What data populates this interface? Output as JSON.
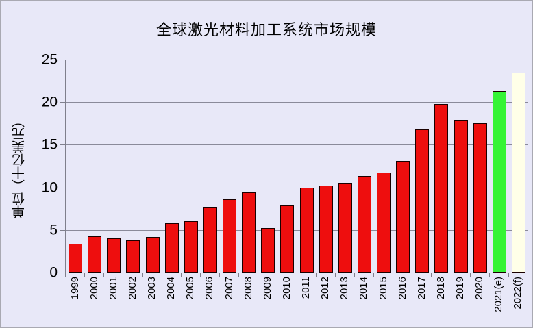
{
  "chart_data": {
    "type": "bar",
    "title": "全球激光材料加工系统市场规模",
    "ylabel": "单位（十亿美元）",
    "xlabel": "",
    "ylim": [
      0,
      25
    ],
    "yticks": [
      0,
      5,
      10,
      15,
      20,
      25
    ],
    "grid": true,
    "legend_position": "none",
    "categories": [
      "1999",
      "2000",
      "2001",
      "2002",
      "2003",
      "2004",
      "2005",
      "2006",
      "2007",
      "2008",
      "2009",
      "2010",
      "2011",
      "2012",
      "2013",
      "2014",
      "2015",
      "2016",
      "2017",
      "2018",
      "2019",
      "2020",
      "2021(e)",
      "2022(f)"
    ],
    "values": [
      3.4,
      4.3,
      4.0,
      3.8,
      4.2,
      5.8,
      6.0,
      7.6,
      8.6,
      9.4,
      5.2,
      7.9,
      10.0,
      10.2,
      10.5,
      11.3,
      11.7,
      13.1,
      16.8,
      19.8,
      17.9,
      17.5,
      21.3,
      23.5
    ],
    "bar_color_roles": [
      "red",
      "red",
      "red",
      "red",
      "red",
      "red",
      "red",
      "red",
      "red",
      "red",
      "red",
      "red",
      "red",
      "red",
      "red",
      "red",
      "red",
      "red",
      "red",
      "red",
      "red",
      "red",
      "green",
      "ivory"
    ]
  },
  "colors": {
    "background": "#e8e8f8",
    "frame_border": "#a9a9b2",
    "bar_red": "#ee0e0e",
    "bar_green": "#35f435",
    "bar_ivory": "#ffffe8",
    "bar_border": "#1a0000",
    "gridline": "#8a8a9a",
    "axis": "#7f7f8c",
    "text": "#000000"
  }
}
